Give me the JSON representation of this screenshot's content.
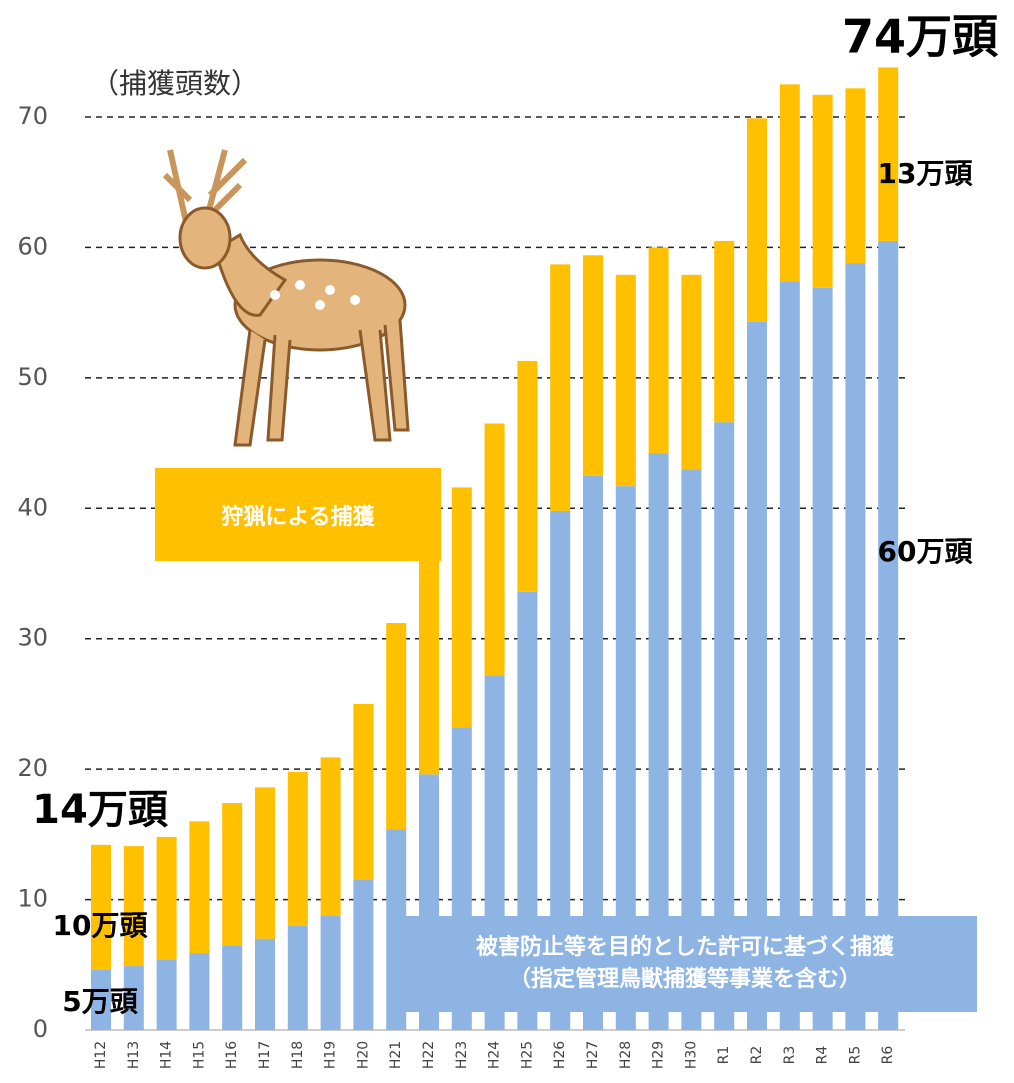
{
  "chart_data": {
    "type": "stacked_bar",
    "y_label": "（捕獲頭数）",
    "categories": [
      "H12",
      "H13",
      "H14",
      "H15",
      "H16",
      "H17",
      "H18",
      "H19",
      "H20",
      "H21",
      "H22",
      "H23",
      "H24",
      "H25",
      "H26",
      "H27",
      "H28",
      "H29",
      "H30",
      "R1",
      "R2",
      "R3",
      "R4",
      "R5",
      "R6"
    ],
    "series": [
      {
        "name": "被害防止等を目的とした許可に基づく捕獲\n（指定管理鳥獣捕獲等事業を含む）",
        "color": "#8eb4e3",
        "values": [
          4.6,
          4.9,
          5.4,
          5.9,
          6.5,
          7.0,
          8.0,
          8.8,
          11.5,
          15.4,
          19.6,
          23.2,
          27.2,
          33.6,
          39.8,
          42.5,
          41.7,
          44.2,
          43.0,
          46.6,
          54.3,
          57.4,
          56.9,
          58.8,
          60.5
        ]
      },
      {
        "name": "狩猟による捕獲",
        "color": "#ffc000",
        "values": [
          9.6,
          9.2,
          9.4,
          10.1,
          10.9,
          11.6,
          11.8,
          12.1,
          13.5,
          15.8,
          18.0,
          18.4,
          19.3,
          17.7,
          18.9,
          16.9,
          16.2,
          15.8,
          14.9,
          13.9,
          15.6,
          15.1,
          14.8,
          13.4,
          13.3
        ]
      }
    ],
    "ylim": [
      0,
      70
    ],
    "yticks": [
      0,
      10,
      20,
      30,
      40,
      50,
      60,
      70
    ],
    "grid": true,
    "annotations": [
      "74万頭",
      "13万頭",
      "60万頭",
      "14万頭",
      "10万頭",
      "5万頭"
    ]
  }
}
